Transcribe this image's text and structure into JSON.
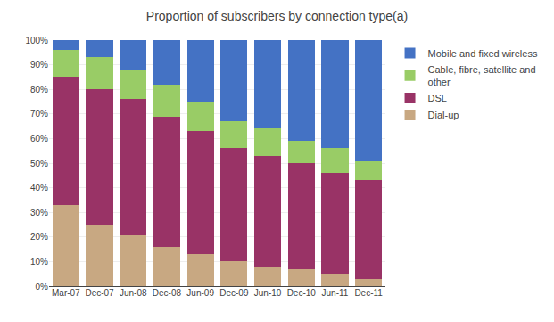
{
  "chart_data": {
    "type": "bar",
    "stacked": true,
    "title": "Proportion of subscribers by connection type(a)",
    "categories": [
      "Mar-07",
      "Dec-07",
      "Jun-08",
      "Dec-08",
      "Jun-09",
      "Dec-09",
      "Jun-10",
      "Dec-10",
      "Jun-11",
      "Dec-11"
    ],
    "series": [
      {
        "name": "Dial-up",
        "color": "#c8a882",
        "values": [
          33,
          25,
          21,
          16,
          13,
          10,
          8,
          7,
          5,
          3
        ]
      },
      {
        "name": "DSL",
        "color": "#993366",
        "values": [
          52,
          55,
          55,
          53,
          50,
          46,
          45,
          43,
          41,
          40
        ]
      },
      {
        "name": "Cable, fibre, satellite and\nother",
        "color": "#99cc66",
        "values": [
          11,
          13,
          12,
          13,
          12,
          11,
          11,
          9,
          10,
          8
        ]
      },
      {
        "name": "Mobile and fixed wireless",
        "color": "#4472c4",
        "values": [
          4,
          7,
          12,
          18,
          25,
          33,
          36,
          41,
          44,
          49
        ]
      }
    ],
    "ylim": [
      0,
      100
    ],
    "yticks": [
      {
        "value": 0,
        "label": "0%"
      },
      {
        "value": 10,
        "label": "10%"
      },
      {
        "value": 20,
        "label": "20%"
      },
      {
        "value": 30,
        "label": "30%"
      },
      {
        "value": 40,
        "label": "40%"
      },
      {
        "value": 50,
        "label": "50%"
      },
      {
        "value": 60,
        "label": "60%"
      },
      {
        "value": 70,
        "label": "70%"
      },
      {
        "value": 80,
        "label": "80%"
      },
      {
        "value": 90,
        "label": "90%"
      },
      {
        "value": 100,
        "label": "100%"
      }
    ],
    "grid": true,
    "legend": "right"
  }
}
